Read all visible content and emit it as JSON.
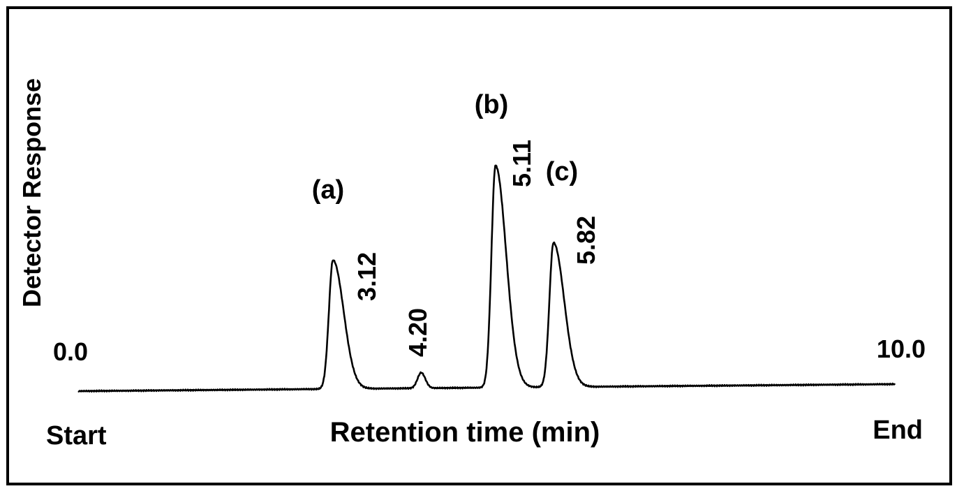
{
  "chart_data": {
    "type": "line",
    "title": "",
    "xlabel": "Retention time (min)",
    "ylabel": "Detector Response",
    "xlim": [
      0.0,
      10.0
    ],
    "x_start_value_label": "0.0",
    "x_end_value_label": "10.0",
    "x_start_label": "Start",
    "x_end_label": "End",
    "grid": false,
    "legend": "none",
    "line_color": "#000000",
    "peaks": [
      {
        "id": "a",
        "label": "(a)",
        "retention_time": 3.12,
        "rt_label": "3.12",
        "relative_height": 0.58
      },
      {
        "id": "impurity",
        "label": "",
        "retention_time": 4.2,
        "rt_label": "4.20",
        "relative_height": 0.07
      },
      {
        "id": "b",
        "label": "(b)",
        "retention_time": 5.11,
        "rt_label": "5.11",
        "relative_height": 1.0
      },
      {
        "id": "c",
        "label": "(c)",
        "retention_time": 5.82,
        "rt_label": "5.82",
        "relative_height": 0.65
      }
    ]
  }
}
